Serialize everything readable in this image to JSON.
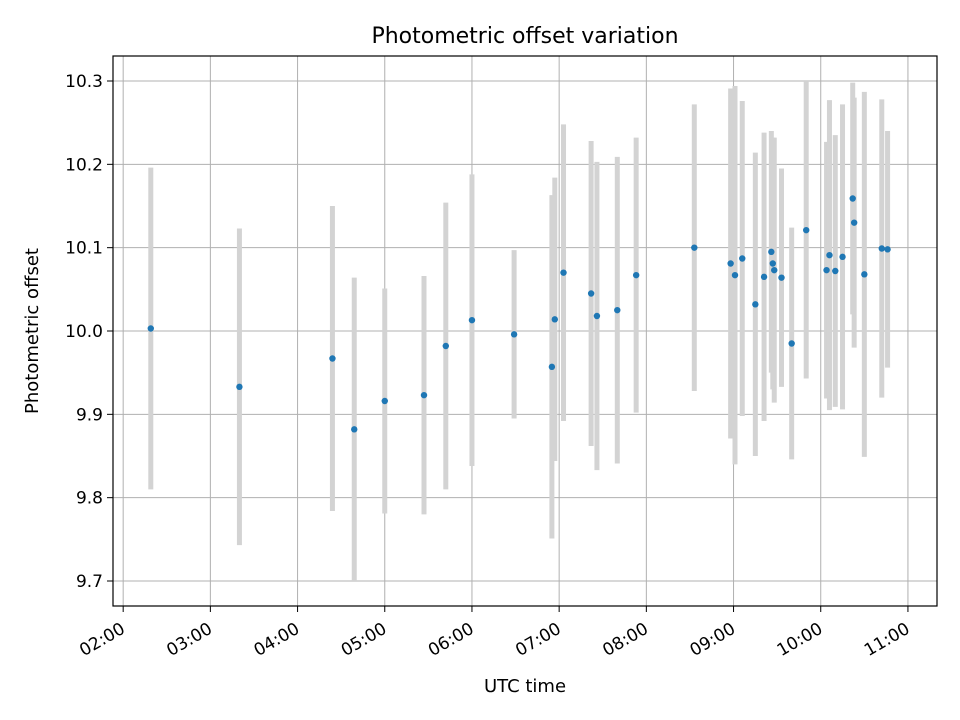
{
  "chart_data": {
    "type": "scatter",
    "title": "Photometric offset variation",
    "xlabel": "UTC time",
    "ylabel": "Photometric offset",
    "xlim": [
      "01:53",
      "11:20"
    ],
    "ylim": [
      9.67,
      10.33
    ],
    "x_ticks": [
      "02:00",
      "03:00",
      "04:00",
      "05:00",
      "06:00",
      "07:00",
      "08:00",
      "09:00",
      "10:00",
      "11:00"
    ],
    "y_ticks": [
      9.7,
      9.8,
      9.9,
      10.0,
      10.1,
      10.2,
      10.3
    ],
    "y_tick_labels": [
      "9.7",
      "9.8",
      "9.9",
      "10.0",
      "10.1",
      "10.2",
      "10.3"
    ],
    "grid": true,
    "marker_color": "#1f77b4",
    "errorbar_color": "#d3d3d3",
    "points": [
      {
        "x": "02:19",
        "y": 10.003,
        "err": 0.193
      },
      {
        "x": "03:20",
        "y": 9.933,
        "err": 0.19
      },
      {
        "x": "04:24",
        "y": 9.967,
        "err": 0.183
      },
      {
        "x": "04:39",
        "y": 9.882,
        "err": 0.182
      },
      {
        "x": "05:00",
        "y": 9.916,
        "err": 0.135
      },
      {
        "x": "05:27",
        "y": 9.923,
        "err": 0.143
      },
      {
        "x": "05:42",
        "y": 9.982,
        "err": 0.172
      },
      {
        "x": "06:00",
        "y": 10.013,
        "err": 0.175
      },
      {
        "x": "06:29",
        "y": 9.996,
        "err": 0.101
      },
      {
        "x": "06:55",
        "y": 9.957,
        "err": 0.206
      },
      {
        "x": "06:57",
        "y": 10.014,
        "err": 0.17
      },
      {
        "x": "07:03",
        "y": 10.07,
        "err": 0.178
      },
      {
        "x": "07:22",
        "y": 10.045,
        "err": 0.183
      },
      {
        "x": "07:26",
        "y": 10.018,
        "err": 0.185
      },
      {
        "x": "07:40",
        "y": 10.025,
        "err": 0.184
      },
      {
        "x": "07:53",
        "y": 10.067,
        "err": 0.165
      },
      {
        "x": "08:33",
        "y": 10.1,
        "err": 0.172
      },
      {
        "x": "08:58",
        "y": 10.081,
        "err": 0.21
      },
      {
        "x": "09:01",
        "y": 10.067,
        "err": 0.227
      },
      {
        "x": "09:06",
        "y": 10.087,
        "err": 0.189
      },
      {
        "x": "09:15",
        "y": 10.032,
        "err": 0.182
      },
      {
        "x": "09:21",
        "y": 10.065,
        "err": 0.173
      },
      {
        "x": "09:26",
        "y": 10.095,
        "err": 0.145
      },
      {
        "x": "09:27",
        "y": 10.081,
        "err": 0.151
      },
      {
        "x": "09:28",
        "y": 10.073,
        "err": 0.159
      },
      {
        "x": "09:33",
        "y": 10.064,
        "err": 0.131
      },
      {
        "x": "09:40",
        "y": 9.985,
        "err": 0.139
      },
      {
        "x": "09:50",
        "y": 10.121,
        "err": 0.178
      },
      {
        "x": "10:04",
        "y": 10.073,
        "err": 0.154
      },
      {
        "x": "10:06",
        "y": 10.091,
        "err": 0.186
      },
      {
        "x": "10:10",
        "y": 10.072,
        "err": 0.163
      },
      {
        "x": "10:15",
        "y": 10.089,
        "err": 0.183
      },
      {
        "x": "10:22",
        "y": 10.159,
        "err": 0.139
      },
      {
        "x": "10:23",
        "y": 10.13,
        "err": 0.15
      },
      {
        "x": "10:30",
        "y": 10.068,
        "err": 0.219
      },
      {
        "x": "10:42",
        "y": 10.099,
        "err": 0.179
      },
      {
        "x": "10:46",
        "y": 10.098,
        "err": 0.142
      }
    ]
  }
}
